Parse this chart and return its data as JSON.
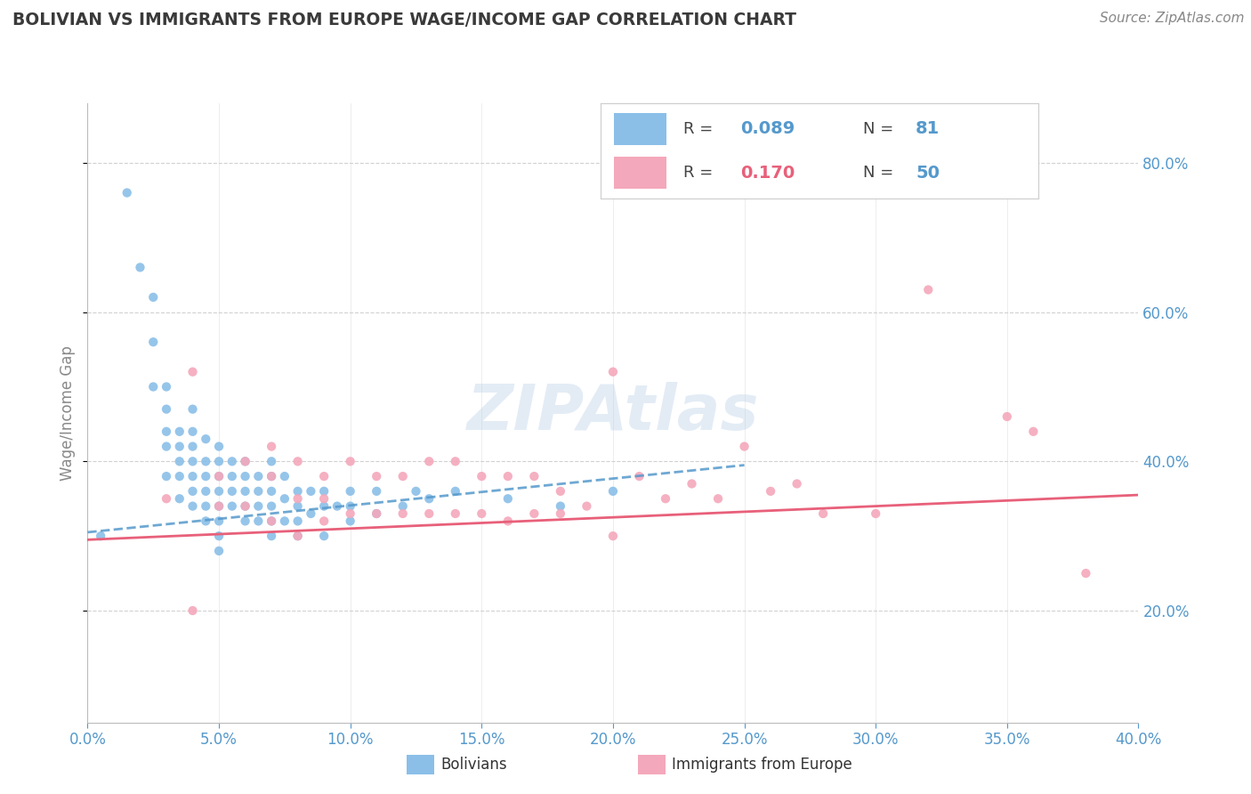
{
  "title": "BOLIVIAN VS IMMIGRANTS FROM EUROPE WAGE/INCOME GAP CORRELATION CHART",
  "source": "Source: ZipAtlas.com",
  "ylabel": "Wage/Income Gap",
  "xmin": 0.0,
  "xmax": 0.4,
  "ymin": 0.05,
  "ymax": 0.88,
  "yticks": [
    0.2,
    0.4,
    0.6,
    0.8
  ],
  "xticks": [
    0.0,
    0.05,
    0.1,
    0.15,
    0.2,
    0.25,
    0.3,
    0.35,
    0.4
  ],
  "blue_color": "#8bbfe8",
  "pink_color": "#f4a8bb",
  "blue_line_color": "#5599cc",
  "pink_line_color": "#e8607a",
  "title_color": "#3a3a3a",
  "axis_color": "#5599cc",
  "background_color": "#ffffff",
  "grid_color": "#cccccc",
  "watermark": "ZIPAtlas",
  "legend_R1": "0.089",
  "legend_N1": "81",
  "legend_R2": "0.170",
  "legend_N2": "50",
  "blue_scatter_x": [
    0.005,
    0.015,
    0.02,
    0.025,
    0.025,
    0.025,
    0.03,
    0.03,
    0.03,
    0.03,
    0.03,
    0.035,
    0.035,
    0.035,
    0.035,
    0.035,
    0.04,
    0.04,
    0.04,
    0.04,
    0.04,
    0.04,
    0.04,
    0.045,
    0.045,
    0.045,
    0.045,
    0.045,
    0.045,
    0.05,
    0.05,
    0.05,
    0.05,
    0.05,
    0.05,
    0.05,
    0.05,
    0.055,
    0.055,
    0.055,
    0.055,
    0.06,
    0.06,
    0.06,
    0.06,
    0.06,
    0.065,
    0.065,
    0.065,
    0.065,
    0.07,
    0.07,
    0.07,
    0.07,
    0.07,
    0.07,
    0.075,
    0.075,
    0.075,
    0.08,
    0.08,
    0.08,
    0.08,
    0.085,
    0.085,
    0.09,
    0.09,
    0.09,
    0.095,
    0.1,
    0.1,
    0.1,
    0.11,
    0.11,
    0.12,
    0.125,
    0.13,
    0.14,
    0.16,
    0.18,
    0.2
  ],
  "blue_scatter_y": [
    0.3,
    0.76,
    0.66,
    0.62,
    0.56,
    0.5,
    0.5,
    0.47,
    0.44,
    0.42,
    0.38,
    0.44,
    0.42,
    0.4,
    0.38,
    0.35,
    0.47,
    0.44,
    0.42,
    0.4,
    0.38,
    0.36,
    0.34,
    0.43,
    0.4,
    0.38,
    0.36,
    0.34,
    0.32,
    0.42,
    0.4,
    0.38,
    0.36,
    0.34,
    0.32,
    0.3,
    0.28,
    0.4,
    0.38,
    0.36,
    0.34,
    0.4,
    0.38,
    0.36,
    0.34,
    0.32,
    0.38,
    0.36,
    0.34,
    0.32,
    0.4,
    0.38,
    0.36,
    0.34,
    0.32,
    0.3,
    0.38,
    0.35,
    0.32,
    0.36,
    0.34,
    0.32,
    0.3,
    0.36,
    0.33,
    0.36,
    0.34,
    0.3,
    0.34,
    0.36,
    0.34,
    0.32,
    0.36,
    0.33,
    0.34,
    0.36,
    0.35,
    0.36,
    0.35,
    0.34,
    0.36
  ],
  "pink_scatter_x": [
    0.03,
    0.04,
    0.05,
    0.05,
    0.06,
    0.06,
    0.07,
    0.07,
    0.07,
    0.08,
    0.08,
    0.08,
    0.09,
    0.09,
    0.09,
    0.1,
    0.1,
    0.11,
    0.11,
    0.12,
    0.12,
    0.13,
    0.13,
    0.14,
    0.14,
    0.15,
    0.15,
    0.16,
    0.16,
    0.17,
    0.17,
    0.18,
    0.18,
    0.19,
    0.2,
    0.2,
    0.21,
    0.22,
    0.23,
    0.24,
    0.25,
    0.26,
    0.27,
    0.28,
    0.3,
    0.32,
    0.35,
    0.36,
    0.38,
    0.04
  ],
  "pink_scatter_y": [
    0.35,
    0.52,
    0.38,
    0.34,
    0.4,
    0.34,
    0.42,
    0.38,
    0.32,
    0.4,
    0.35,
    0.3,
    0.38,
    0.35,
    0.32,
    0.4,
    0.33,
    0.38,
    0.33,
    0.38,
    0.33,
    0.4,
    0.33,
    0.4,
    0.33,
    0.38,
    0.33,
    0.38,
    0.32,
    0.38,
    0.33,
    0.36,
    0.33,
    0.34,
    0.52,
    0.3,
    0.38,
    0.35,
    0.37,
    0.35,
    0.42,
    0.36,
    0.37,
    0.33,
    0.33,
    0.63,
    0.46,
    0.44,
    0.25,
    0.2
  ],
  "blue_trend_x": [
    0.0,
    0.25
  ],
  "blue_trend_y": [
    0.305,
    0.395
  ],
  "pink_trend_x": [
    0.0,
    0.4
  ],
  "pink_trend_y": [
    0.295,
    0.355
  ]
}
